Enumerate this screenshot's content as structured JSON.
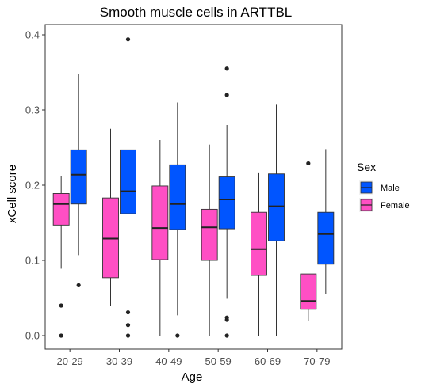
{
  "chart_data": {
    "type": "boxplot",
    "title": "Smooth muscle cells in ARTTBL",
    "xlabel": "Age",
    "ylabel": "xCell score",
    "categories": [
      "20-29",
      "30-39",
      "40-49",
      "50-59",
      "60-69",
      "70-79"
    ],
    "yticks": [
      "0.0",
      "0.1",
      "0.2",
      "0.3",
      "0.4"
    ],
    "ylim": [
      -0.02,
      0.41
    ],
    "grid": false,
    "legend": {
      "title": "Sex",
      "position": "right",
      "entries": [
        {
          "name": "Male",
          "color": "#0055ff"
        },
        {
          "name": "Female",
          "color": "#ff4fc4"
        }
      ]
    },
    "series": [
      {
        "name": "Female",
        "color": "#ff4fc4",
        "boxes": [
          {
            "whisker_low": 0.089,
            "q1": 0.147,
            "median": 0.175,
            "q3": 0.189,
            "whisker_high": 0.212,
            "outliers": [
              0.04,
              0.0
            ]
          },
          {
            "whisker_low": 0.039,
            "q1": 0.077,
            "median": 0.129,
            "q3": 0.183,
            "whisker_high": 0.275,
            "outliers": []
          },
          {
            "whisker_low": 0.0,
            "q1": 0.101,
            "median": 0.143,
            "q3": 0.199,
            "whisker_high": 0.26,
            "outliers": []
          },
          {
            "whisker_low": 0.0,
            "q1": 0.1,
            "median": 0.144,
            "q3": 0.168,
            "whisker_high": 0.254,
            "outliers": []
          },
          {
            "whisker_low": 0.0,
            "q1": 0.08,
            "median": 0.115,
            "q3": 0.164,
            "whisker_high": 0.217,
            "outliers": []
          },
          {
            "whisker_low": 0.02,
            "q1": 0.035,
            "median": 0.046,
            "q3": 0.082,
            "whisker_high": 0.082,
            "outliers": [
              0.229
            ]
          }
        ]
      },
      {
        "name": "Male",
        "color": "#0055ff",
        "boxes": [
          {
            "whisker_low": 0.107,
            "q1": 0.175,
            "median": 0.214,
            "q3": 0.247,
            "whisker_high": 0.348,
            "outliers": [
              0.067
            ]
          },
          {
            "whisker_low": 0.05,
            "q1": 0.162,
            "median": 0.192,
            "q3": 0.247,
            "whisker_high": 0.272,
            "outliers": [
              0.394,
              0.031,
              0.014,
              0.0
            ]
          },
          {
            "whisker_low": 0.027,
            "q1": 0.141,
            "median": 0.175,
            "q3": 0.227,
            "whisker_high": 0.31,
            "outliers": [
              0.0
            ]
          },
          {
            "whisker_low": 0.049,
            "q1": 0.142,
            "median": 0.181,
            "q3": 0.211,
            "whisker_high": 0.28,
            "outliers": [
              0.355,
              0.32,
              0.024,
              0.021,
              0.0
            ]
          },
          {
            "whisker_low": 0.0,
            "q1": 0.126,
            "median": 0.172,
            "q3": 0.215,
            "whisker_high": 0.307,
            "outliers": []
          },
          {
            "whisker_low": 0.055,
            "q1": 0.095,
            "median": 0.135,
            "q3": 0.164,
            "whisker_high": 0.248,
            "outliers": []
          }
        ]
      }
    ]
  }
}
